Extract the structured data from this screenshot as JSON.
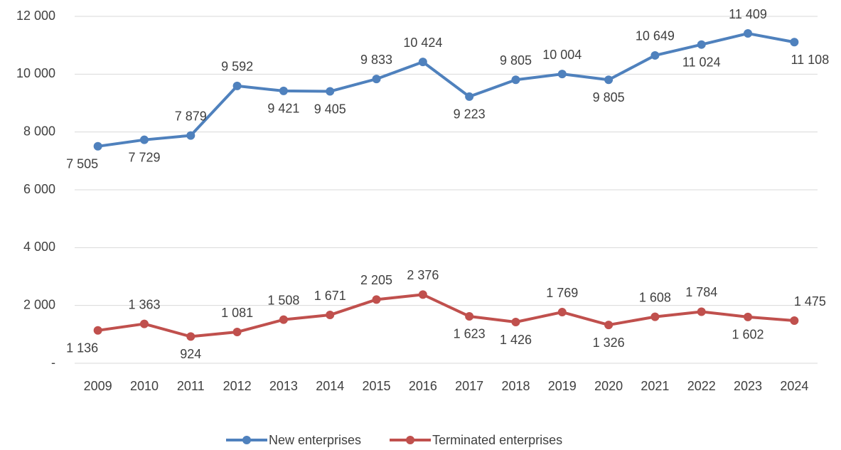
{
  "chart_data": {
    "type": "line",
    "categories": [
      "2009",
      "2010",
      "2011",
      "2012",
      "2013",
      "2014",
      "2015",
      "2016",
      "2017",
      "2018",
      "2019",
      "2020",
      "2021",
      "2022",
      "2023",
      "2024"
    ],
    "series": [
      {
        "name": "New enterprises",
        "color": "#4f81bd",
        "values": [
          7505,
          7729,
          7879,
          9592,
          9421,
          9405,
          9833,
          10424,
          9223,
          9805,
          10004,
          9805,
          10649,
          11024,
          11409,
          11108
        ],
        "value_labels": [
          "7 505",
          "7 729",
          "7 879",
          "9 592",
          "9 421",
          "9 405",
          "9 833",
          "10 424",
          "9 223",
          "9 805",
          "10 004",
          "9 805",
          "10 649",
          "11 024",
          "11 409",
          "11 108"
        ]
      },
      {
        "name": "Terminated enterprises",
        "color": "#c0504d",
        "values": [
          1136,
          1363,
          924,
          1081,
          1508,
          1671,
          2205,
          2376,
          1623,
          1426,
          1769,
          1326,
          1608,
          1784,
          1602,
          1475
        ],
        "value_labels": [
          "1 136",
          "1 363",
          "924",
          "1 081",
          "1 508",
          "1 671",
          "2 205",
          "2 376",
          "1 623",
          "1 426",
          "1 769",
          "1 326",
          "1 608",
          "1 784",
          "1 602",
          "1 475"
        ]
      }
    ],
    "ylim": [
      0,
      12000
    ],
    "yticks": [
      {
        "value": 0,
        "label": "-"
      },
      {
        "value": 2000,
        "label": "2 000"
      },
      {
        "value": 4000,
        "label": "4 000"
      },
      {
        "value": 6000,
        "label": "6 000"
      },
      {
        "value": 8000,
        "label": "8 000"
      },
      {
        "value": 10000,
        "label": "10 000"
      },
      {
        "value": 12000,
        "label": "12 000"
      }
    ],
    "grid": true,
    "legend": "bottom"
  }
}
